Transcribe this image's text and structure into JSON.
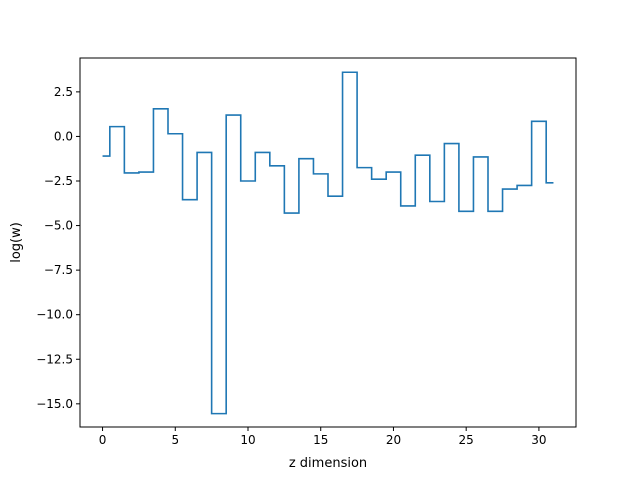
{
  "colors": {
    "series": "#1f77b4",
    "axes": "#000000",
    "background": "#ffffff"
  },
  "chart_data": {
    "type": "line",
    "drawstyle": "steps-mid",
    "title": "",
    "xlabel": "z dimension",
    "ylabel": "log(w)",
    "xlim": [
      -1.55,
      32.55
    ],
    "ylim": [
      -16.3,
      4.4
    ],
    "xticks": [
      0,
      5,
      10,
      15,
      20,
      25,
      30
    ],
    "xtick_labels": [
      "0",
      "5",
      "10",
      "15",
      "20",
      "25",
      "30"
    ],
    "yticks": [
      2.5,
      0.0,
      -2.5,
      -5.0,
      -7.5,
      -10.0,
      -12.5,
      -15.0
    ],
    "ytick_labels": [
      "2.5",
      "0.0",
      "−2.5",
      "−5.0",
      "−7.5",
      "−10.0",
      "−12.5",
      "−15.0"
    ],
    "grid": false,
    "legend": false,
    "series": [
      {
        "x": [
          0,
          1,
          2,
          3,
          4,
          5,
          6,
          7,
          8,
          9,
          10,
          11,
          12,
          13,
          14,
          15,
          16,
          17,
          18,
          19,
          20,
          21,
          22,
          23,
          24,
          25,
          26,
          27,
          28,
          29,
          30,
          31
        ],
        "values": [
          -1.1,
          0.55,
          -2.05,
          -2.0,
          1.55,
          0.15,
          -3.55,
          -0.9,
          -15.55,
          1.2,
          -2.5,
          -0.9,
          -1.65,
          -4.3,
          -1.25,
          -2.1,
          -3.35,
          3.6,
          -1.75,
          -2.4,
          -2.0,
          -3.9,
          -1.05,
          -3.65,
          -0.4,
          -4.2,
          -1.15,
          -4.2,
          -2.95,
          -2.75,
          0.85,
          -2.6
        ]
      }
    ]
  }
}
